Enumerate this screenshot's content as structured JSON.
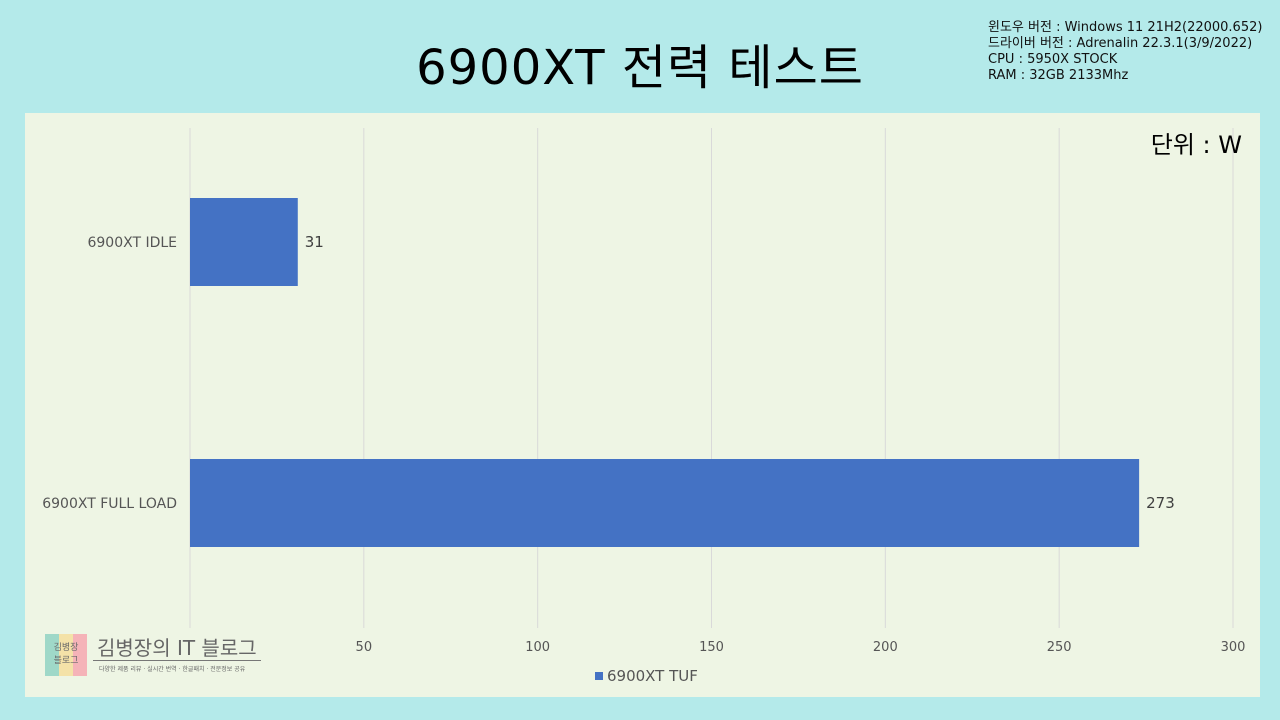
{
  "page": {
    "title": "6900XT 전력 테스트",
    "sysinfo": [
      "윈도우 버전 : Windows 11 21H2(22000.652)",
      "드라이버 버전 : Adrenalin 22.3.1(3/9/2022)",
      "CPU : 5950X STOCK",
      "RAM : 32GB 2133Mhz"
    ],
    "unit_label": "단위 : W",
    "watermark": {
      "box_text_1": "김병장",
      "box_text_2": "블로그",
      "name": "김병장의 IT 블로그",
      "tagline": "다양한 제품 리뷰 · 실시간 번역 · 한글패치 · 전문정보 공유"
    }
  },
  "colors": {
    "background": "#b4eaea",
    "panel": "#eef5e4",
    "bar": "#4472c4",
    "grid": "#d9d9d9"
  },
  "chart_data": {
    "type": "bar",
    "orientation": "horizontal",
    "categories": [
      "6900XT IDLE",
      "6900XT FULL LOAD"
    ],
    "series": [
      {
        "name": "6900XT TUF",
        "values": [
          31,
          273
        ]
      }
    ],
    "xlim": [
      0,
      300
    ],
    "xticks": [
      0,
      50,
      100,
      150,
      200,
      250,
      300
    ],
    "xtick_labels": [
      "",
      "50",
      "100",
      "150",
      "200",
      "250",
      "300"
    ],
    "data_labels": [
      "31",
      "273"
    ],
    "grid": true,
    "legend_position": "bottom"
  }
}
